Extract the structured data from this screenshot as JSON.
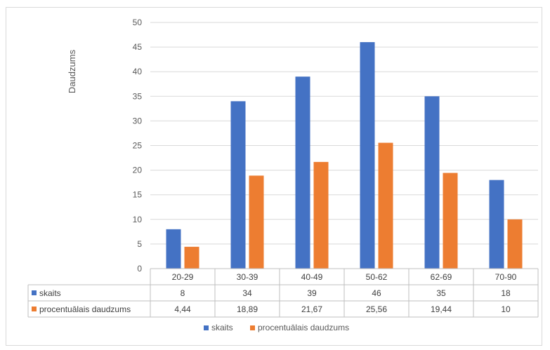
{
  "chart_data": {
    "type": "bar",
    "ylabel": "Daudzums",
    "ylim": [
      0,
      50
    ],
    "yticks": [
      "0",
      "5",
      "10",
      "15",
      "20",
      "25",
      "30",
      "35",
      "40",
      "45",
      "50"
    ],
    "categories": [
      "20-29",
      "30-39",
      "40-49",
      "50-62",
      "62-69",
      "70-90"
    ],
    "series": [
      {
        "name": "skaits",
        "color": "#4472c4",
        "values": [
          8,
          34,
          39,
          46,
          35,
          18
        ],
        "labels": [
          "8",
          "34",
          "39",
          "46",
          "35",
          "18"
        ]
      },
      {
        "name": "procentuālais daudzums",
        "color": "#ed7d31",
        "values": [
          4.44,
          18.89,
          21.67,
          25.56,
          19.44,
          10
        ],
        "labels": [
          "4,44",
          "18,89",
          "21,67",
          "25,56",
          "19,44",
          "10"
        ]
      }
    ],
    "grid": true,
    "legend": "bottom",
    "data_table": true
  }
}
